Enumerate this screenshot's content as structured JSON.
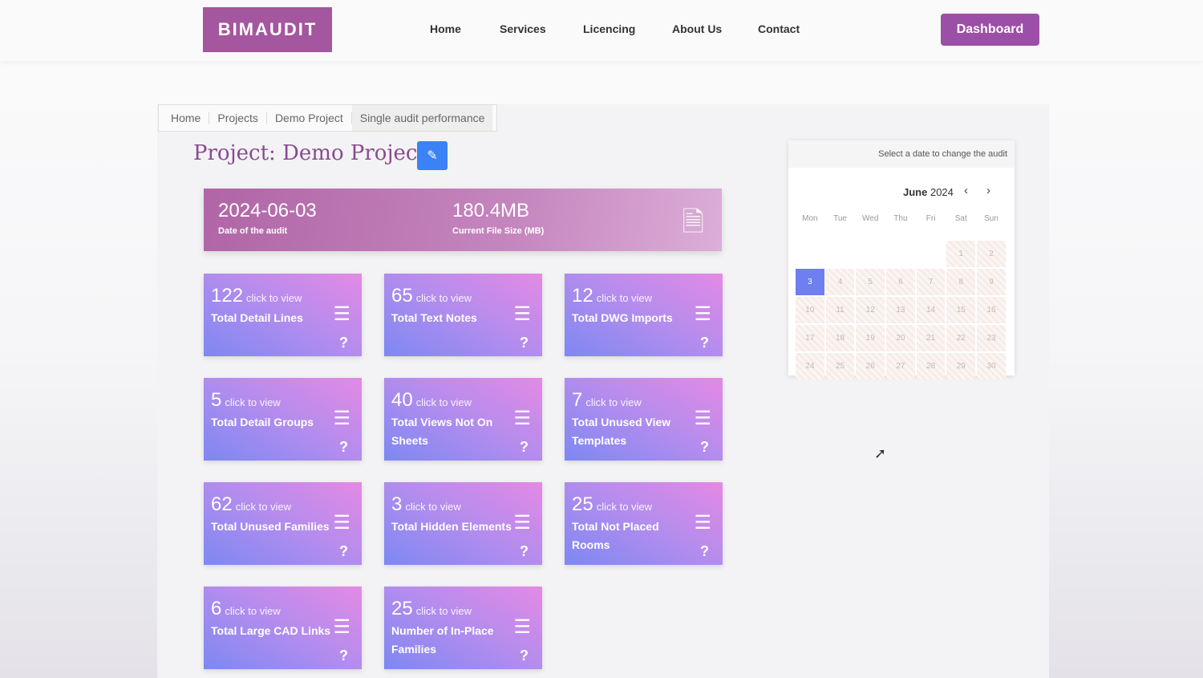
{
  "nav": {
    "logo": "BIMAUDIT",
    "links": [
      "Home",
      "Services",
      "Licencing",
      "About Us",
      "Contact"
    ],
    "dashboard": "Dashboard"
  },
  "breadcrumb": [
    "Home",
    "Projects",
    "Demo Project",
    "Single audit performance"
  ],
  "title": "Project: Demo Project",
  "banner": {
    "date": "2024-06-03",
    "date_label": "Date of the audit",
    "size": "180.4MB",
    "size_label": "Current File Size (MB)"
  },
  "click_text": "click to view",
  "cards": [
    {
      "value": "122",
      "label": "Total Detail Lines"
    },
    {
      "value": "65",
      "label": "Total Text Notes"
    },
    {
      "value": "12",
      "label": "Total DWG Imports"
    },
    {
      "value": "5",
      "label": "Total Detail Groups"
    },
    {
      "value": "40",
      "label": "Total Views Not On Sheets"
    },
    {
      "value": "7",
      "label": "Total Unused View Templates"
    },
    {
      "value": "62",
      "label": "Total Unused Families"
    },
    {
      "value": "3",
      "label": "Total Hidden Elements"
    },
    {
      "value": "25",
      "label": "Total Not Placed Rooms"
    },
    {
      "value": "6",
      "label": "Total Large CAD Links"
    },
    {
      "value": "25",
      "label": "Number of In-Place Families"
    }
  ],
  "calendar": {
    "hint": "Select a date to change the audit",
    "month": "June",
    "year": "2024",
    "weekdays": [
      "Mon",
      "Tue",
      "Wed",
      "Thu",
      "Fri",
      "Sat",
      "Sun"
    ],
    "selected": "3",
    "leading_blanks": 5,
    "days": 30
  }
}
